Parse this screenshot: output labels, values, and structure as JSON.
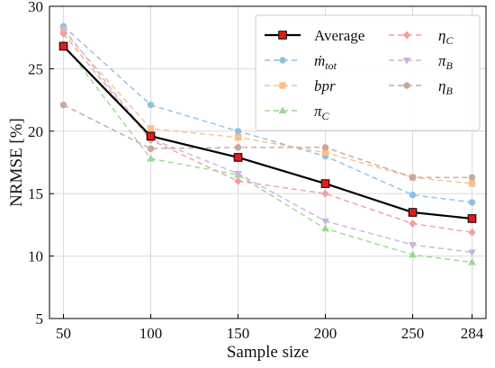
{
  "chart_data": {
    "type": "line",
    "xlabel": "Sample size",
    "ylabel": "NRMSE [%]",
    "ylim": [
      5,
      30
    ],
    "yticks": [
      5,
      10,
      15,
      20,
      25,
      30
    ],
    "x": [
      50,
      100,
      150,
      200,
      250,
      284
    ],
    "x_tick_labels": [
      "50",
      "100",
      "150",
      "200",
      "250",
      "284"
    ],
    "grid": true,
    "legend_position": "top-right",
    "legend_columns": 2,
    "series": [
      {
        "name": "Average",
        "color": "#000000",
        "marker": "square",
        "marker_color": "#e41a1c",
        "style": "solid",
        "values": [
          26.8,
          19.6,
          17.9,
          15.8,
          13.5,
          13.0
        ]
      },
      {
        "name": "ṁ",
        "sub": "tot",
        "color": "#8fbfe0",
        "marker": "circle",
        "style": "dashed",
        "values": [
          28.4,
          22.1,
          20.0,
          18.0,
          14.9,
          14.3
        ]
      },
      {
        "name": "bpr",
        "sub": "",
        "color": "#f9c08a",
        "marker": "square",
        "style": "dashed",
        "values": [
          28.0,
          20.2,
          19.5,
          18.3,
          16.3,
          15.8
        ]
      },
      {
        "name": "π",
        "sub": "C",
        "color": "#98d98e",
        "marker": "triangle-up",
        "style": "dashed",
        "values": [
          27.0,
          17.8,
          16.5,
          12.2,
          10.1,
          9.5
        ]
      },
      {
        "name": "η",
        "sub": "C",
        "color": "#f0a0a0",
        "marker": "diamond",
        "style": "dashed",
        "values": [
          27.8,
          19.3,
          16.0,
          15.0,
          12.6,
          11.9
        ]
      },
      {
        "name": "π",
        "sub": "B",
        "color": "#c9b3e0",
        "marker": "triangle-down",
        "style": "dashed",
        "values": [
          28.2,
          19.4,
          16.6,
          12.8,
          10.9,
          10.3
        ]
      },
      {
        "name": "η",
        "sub": "B",
        "color": "#c9a89a",
        "marker": "circle",
        "style": "dashed",
        "values": [
          22.1,
          18.6,
          18.7,
          18.7,
          16.3,
          16.3
        ]
      }
    ]
  }
}
